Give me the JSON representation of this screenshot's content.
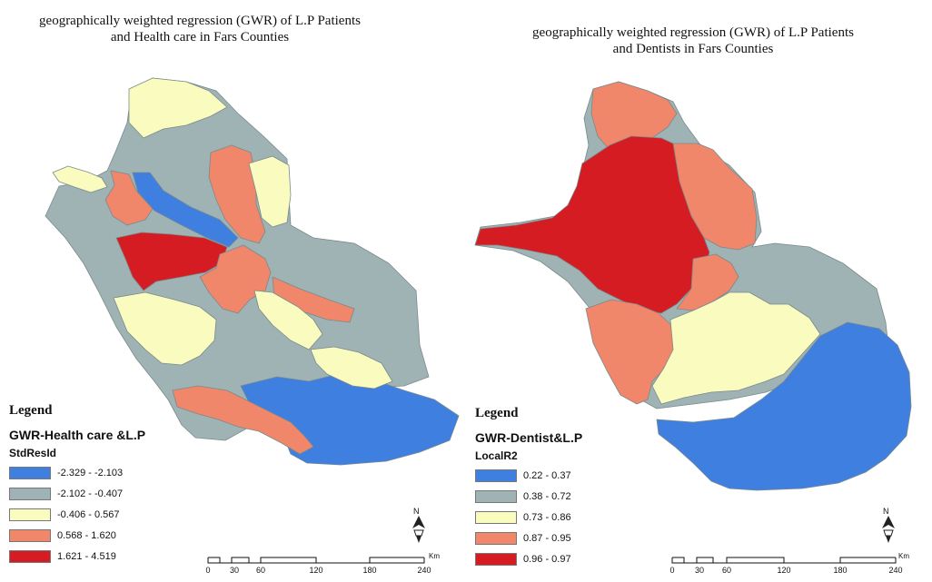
{
  "maps": [
    {
      "title_line1": "geographically weighted regression (GWR) of L.P Patients",
      "title_line2": "and Health care in Fars Counties",
      "legend": {
        "heading": "Legend",
        "subtitle": "GWR-Health care &L.P",
        "field": "StdResId",
        "classes": [
          {
            "label": "-2.329 - -2.103",
            "color": "#3f7fe0"
          },
          {
            "label": "-2.102 - -0.407",
            "color": "#9fb2b4"
          },
          {
            "label": "-0.406 - 0.567",
            "color": "#fafcbf"
          },
          {
            "label": "0.568 - 1.620",
            "color": "#f0866a"
          },
          {
            "label": "1.621 - 4.519",
            "color": "#d41c22"
          }
        ]
      },
      "scale": {
        "ticks": [
          "0",
          "30",
          "60",
          "120",
          "180",
          "240"
        ],
        "unit": "Km"
      }
    },
    {
      "title_line1": "geographically weighted regression (GWR) of L.P Patients",
      "title_line2": "and Dentists in Fars Counties",
      "legend": {
        "heading": "Legend",
        "subtitle": "GWR-Dentist&L.P",
        "field": "LocalR2",
        "classes": [
          {
            "label": "0.22 - 0.37",
            "color": "#3f7fe0"
          },
          {
            "label": "0.38 - 0.72",
            "color": "#9fb2b4"
          },
          {
            "label": "0.73 - 0.86",
            "color": "#fafcbf"
          },
          {
            "label": "0.87 - 0.95",
            "color": "#f0866a"
          },
          {
            "label": "0.96 - 0.97",
            "color": "#d41c22"
          }
        ]
      },
      "scale": {
        "ticks": [
          "0",
          "30",
          "60",
          "120",
          "180",
          "240"
        ],
        "unit": "Km"
      }
    }
  ]
}
